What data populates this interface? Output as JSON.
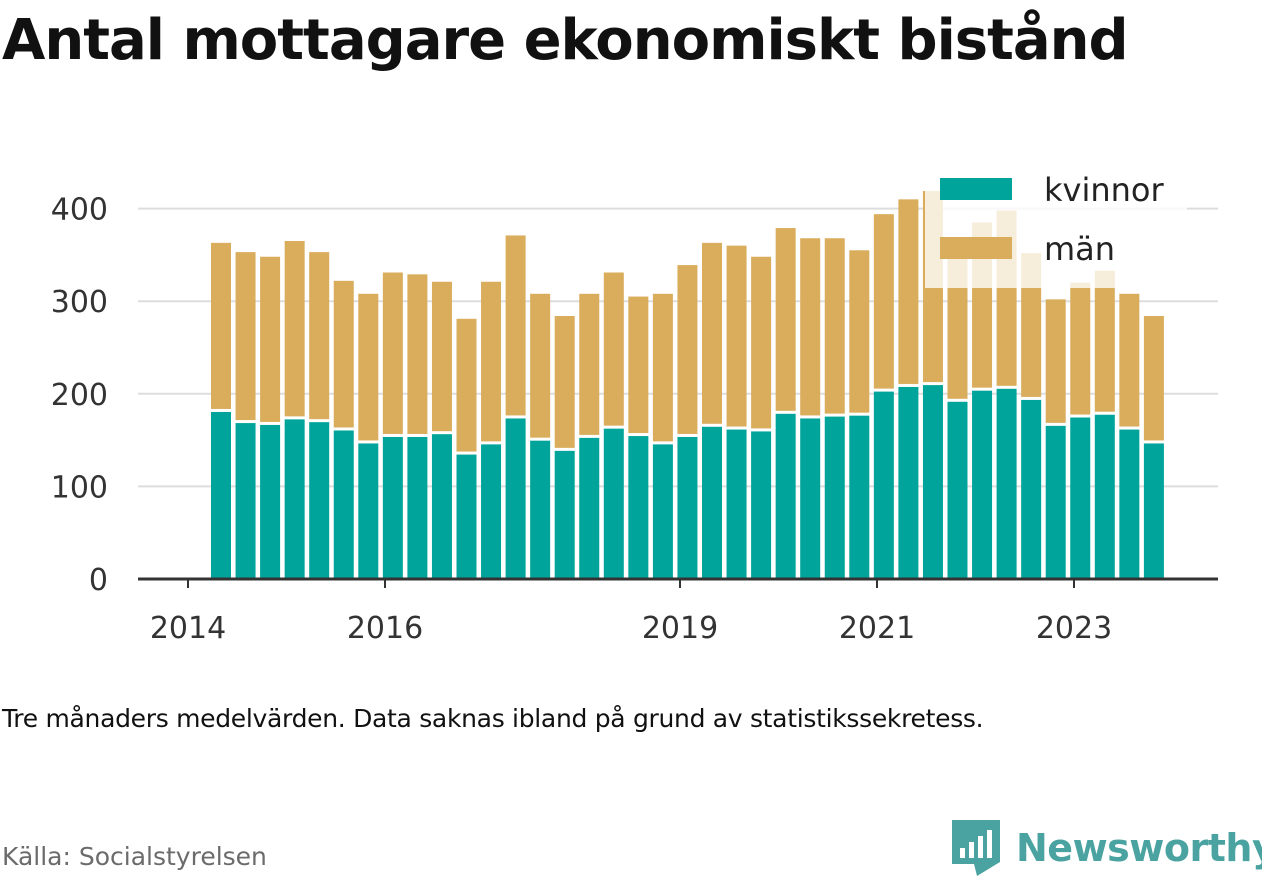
{
  "title": "Antal mottagare ekonomiskt bistånd",
  "note": "Tre månaders medelvärden. Data saknas ibland på grund av statistikssekretess.",
  "source": "Källa: Socialstyrelsen",
  "brand": "Newsworthy",
  "colors": {
    "kvinnor": "#00a49a",
    "man": "#d9ad5c",
    "axis": "#333333",
    "grid": "#dddddd",
    "brand": "#4aa3a0"
  },
  "chart_data": {
    "type": "bar",
    "stacked": true,
    "x_ticks": [
      "2014",
      "2016",
      "2019",
      "2021",
      "2023"
    ],
    "y_ticks": [
      "0",
      "100",
      "200",
      "300",
      "400"
    ],
    "ylim": [
      0,
      420
    ],
    "grid": "horizontal",
    "legend_position": "top-right",
    "series": [
      {
        "name": "kvinnor",
        "values": [
          182,
          170,
          168,
          174,
          171,
          162,
          148,
          155,
          155,
          158,
          136,
          147,
          175,
          151,
          140,
          154,
          164,
          156,
          147,
          155,
          166,
          163,
          161,
          180,
          175,
          177,
          178,
          204,
          209,
          211,
          193,
          205,
          207,
          195,
          167,
          176,
          179,
          163,
          148
        ]
      },
      {
        "name": "män",
        "values": [
          181,
          183,
          180,
          191,
          182,
          160,
          160,
          176,
          174,
          163,
          145,
          174,
          196,
          157,
          144,
          154,
          167,
          149,
          161,
          184,
          197,
          197,
          187,
          199,
          193,
          191,
          177,
          190,
          201,
          208,
          160,
          180,
          191,
          157,
          135,
          144,
          154,
          145,
          136
        ]
      }
    ]
  }
}
